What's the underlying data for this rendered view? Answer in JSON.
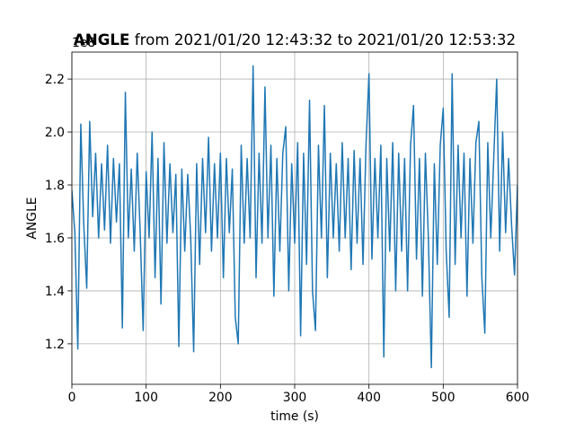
{
  "chart_data": {
    "type": "line",
    "title_bold": "ANGLE",
    "title_rest": " from 2021/01/20 12:43:32 to 2021/01/20 12:53:32",
    "offset_label": "1e8",
    "x_label": "time (s)",
    "y_label": "ANGLE",
    "xlim": [
      0,
      600
    ],
    "ylim": [
      1.047,
      2.302
    ],
    "xticks": [
      0,
      100,
      200,
      300,
      400,
      500,
      600
    ],
    "yticks": [
      1.2,
      1.4,
      1.6,
      1.8,
      {
        "value": 2,
        "label": "2.0"
      },
      2.2
    ],
    "grid": true,
    "x": [
      0,
      4,
      8,
      12,
      16,
      20,
      24,
      28,
      32,
      36,
      40,
      44,
      48,
      52,
      56,
      60,
      64,
      68,
      72,
      76,
      80,
      84,
      88,
      92,
      96,
      100,
      104,
      108,
      112,
      116,
      120,
      124,
      128,
      132,
      136,
      140,
      144,
      148,
      152,
      156,
      160,
      164,
      168,
      172,
      176,
      180,
      184,
      188,
      192,
      196,
      200,
      204,
      208,
      212,
      216,
      220,
      224,
      228,
      232,
      236,
      240,
      244,
      248,
      252,
      256,
      260,
      264,
      268,
      272,
      276,
      280,
      284,
      288,
      292,
      296,
      300,
      304,
      308,
      312,
      316,
      320,
      324,
      328,
      332,
      336,
      340,
      344,
      348,
      352,
      356,
      360,
      364,
      368,
      372,
      376,
      380,
      384,
      388,
      392,
      396,
      400,
      404,
      408,
      412,
      416,
      420,
      424,
      428,
      432,
      436,
      440,
      444,
      448,
      452,
      456,
      460,
      464,
      468,
      472,
      476,
      480,
      484,
      488,
      492,
      496,
      500,
      504,
      508,
      512,
      516,
      520,
      524,
      528,
      532,
      536,
      540,
      544,
      548,
      552,
      556,
      560,
      564,
      568,
      572,
      576,
      580,
      584,
      588,
      592,
      596,
      600
    ],
    "series": [
      {
        "color": "#1f77b4",
        "values": [
          1.78,
          1.62,
          1.18,
          2.03,
          1.65,
          1.41,
          2.04,
          1.68,
          1.92,
          1.6,
          1.88,
          1.63,
          1.95,
          1.58,
          1.9,
          1.66,
          1.88,
          1.26,
          2.15,
          1.6,
          1.86,
          1.55,
          1.92,
          1.62,
          1.25,
          1.85,
          1.6,
          2.0,
          1.45,
          1.9,
          1.35,
          1.96,
          1.58,
          1.88,
          1.62,
          1.84,
          1.19,
          1.86,
          1.55,
          1.84,
          1.6,
          1.17,
          1.88,
          1.5,
          1.9,
          1.62,
          1.98,
          1.55,
          1.88,
          1.6,
          1.92,
          1.45,
          1.9,
          1.62,
          1.86,
          1.3,
          1.2,
          1.95,
          1.58,
          1.9,
          1.6,
          2.25,
          1.45,
          1.92,
          1.58,
          2.17,
          1.6,
          1.95,
          1.38,
          1.9,
          1.55,
          1.92,
          2.02,
          1.4,
          1.88,
          1.58,
          1.96,
          1.23,
          1.92,
          1.5,
          2.12,
          1.4,
          1.25,
          1.95,
          1.6,
          2.1,
          1.45,
          1.92,
          1.6,
          1.88,
          1.55,
          1.96,
          1.6,
          1.9,
          1.48,
          1.93,
          1.58,
          1.9,
          1.5,
          1.95,
          2.22,
          1.52,
          1.9,
          1.6,
          1.95,
          1.15,
          1.9,
          1.55,
          1.96,
          1.4,
          1.92,
          1.55,
          1.9,
          1.4,
          1.95,
          2.1,
          1.52,
          1.9,
          1.38,
          1.92,
          1.6,
          1.11,
          1.88,
          1.5,
          1.95,
          2.09,
          1.55,
          1.3,
          2.22,
          1.5,
          1.95,
          1.6,
          1.92,
          1.38,
          1.9,
          1.58,
          1.96,
          2.04,
          1.45,
          1.24,
          1.96,
          1.6,
          1.9,
          2.2,
          1.55,
          2.0,
          1.62,
          1.9,
          1.65,
          1.46,
          1.8
        ]
      }
    ]
  }
}
